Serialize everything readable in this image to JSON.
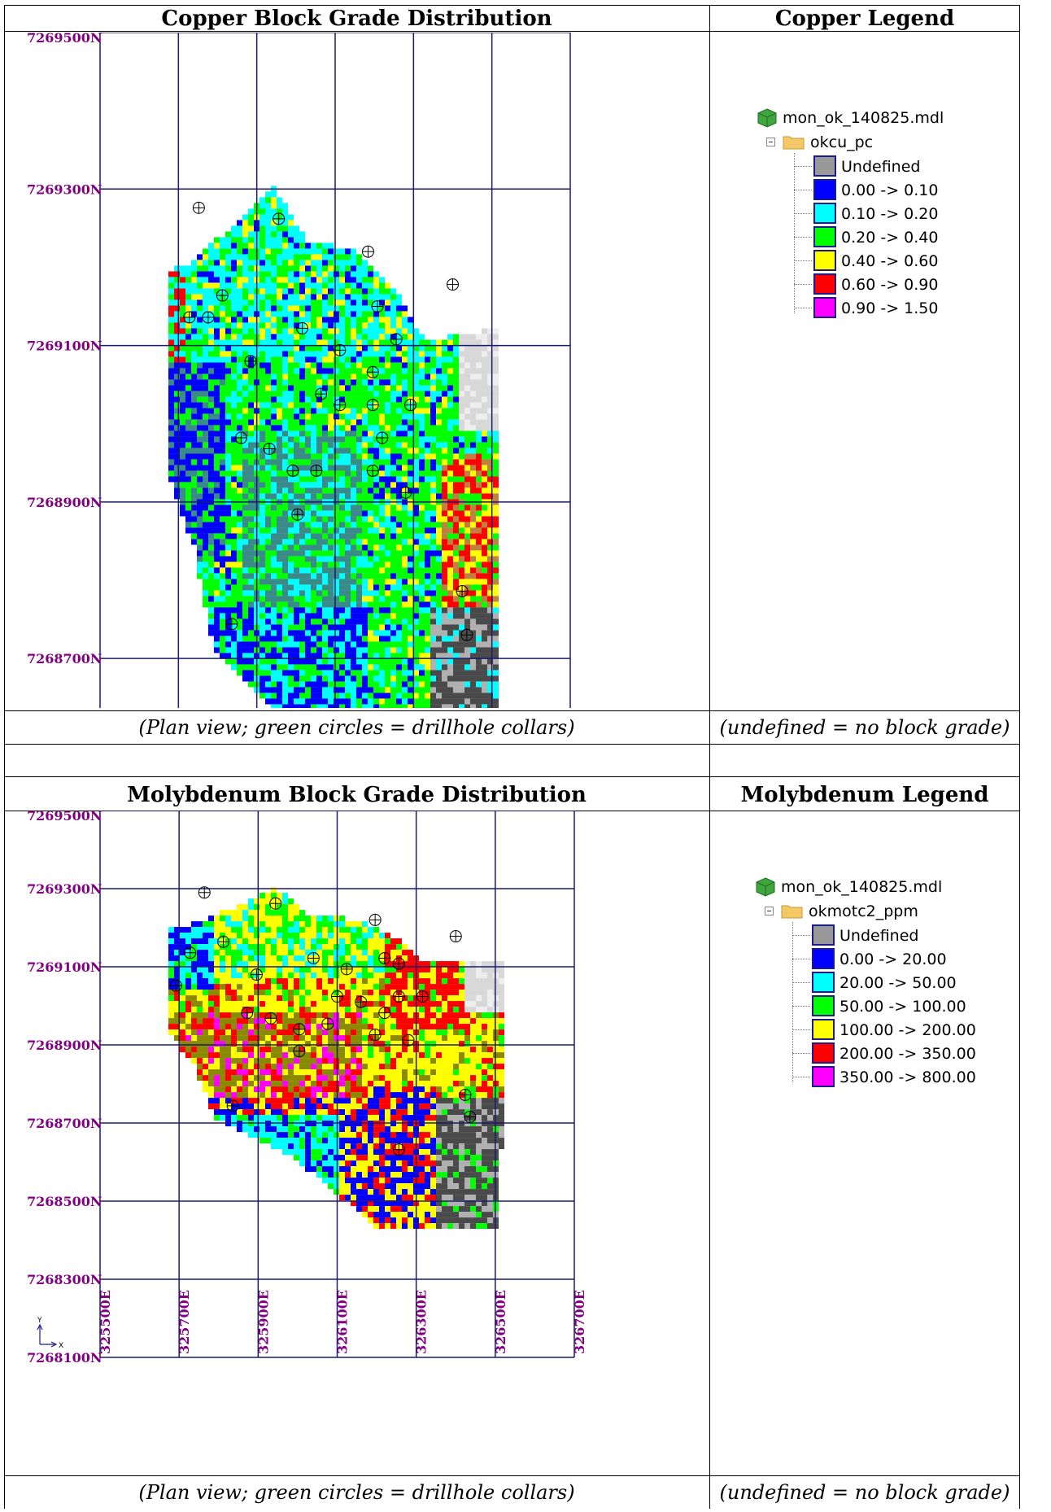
{
  "copper": {
    "title": "Copper Block Grade Distribution",
    "legend_title": "Copper Legend",
    "caption": "(Plan view; green circles = drillhole collars)",
    "legend_caption": "(undefined = no block grade)",
    "model_name": "mon_ok_140825.mdl",
    "field_name": "okcu_pc",
    "legend_items": [
      {
        "label": "Undefined",
        "color": "#999999"
      },
      {
        "label": "0.00 -> 0.10",
        "color": "#0000ff"
      },
      {
        "label": "0.10 -> 0.20",
        "color": "#00ffff"
      },
      {
        "label": "0.20 -> 0.40",
        "color": "#00ff00"
      },
      {
        "label": "0.40 -> 0.60",
        "color": "#ffff00"
      },
      {
        "label": "0.60 -> 0.90",
        "color": "#ff0000"
      },
      {
        "label": "0.90 -> 1.50",
        "color": "#ff00ff"
      }
    ]
  },
  "molybdenum": {
    "title": "Molybdenum Block Grade Distribution",
    "legend_title": "Molybdenum Legend",
    "caption": "(Plan view; green circles = drillhole collars)",
    "legend_caption": "(undefined = no block grade)",
    "model_name": "mon_ok_140825.mdl",
    "field_name": "okmotc2_ppm",
    "legend_items": [
      {
        "label": "Undefined",
        "color": "#999999"
      },
      {
        "label": "0.00 -> 20.00",
        "color": "#0000ff"
      },
      {
        "label": "20.00 -> 50.00",
        "color": "#00ffff"
      },
      {
        "label": "50.00 -> 100.00",
        "color": "#00ff00"
      },
      {
        "label": "100.00 -> 200.00",
        "color": "#ffff00"
      },
      {
        "label": "200.00 -> 350.00",
        "color": "#ff0000"
      },
      {
        "label": "350.00 -> 800.00",
        "color": "#ff00ff"
      }
    ]
  },
  "map": {
    "northings": [
      "7269500N",
      "7269300N",
      "7269100N",
      "7268900N",
      "7268700N",
      "7268500N",
      "7268300N",
      "7268100N"
    ],
    "eastings": [
      "325500E",
      "325700E",
      "325900E",
      "326100E",
      "326300E",
      "326500E",
      "326700E"
    ],
    "label_color": "#800080",
    "grid_color": "#1a1a6e",
    "axis_y": "Y",
    "axis_x": "X"
  }
}
